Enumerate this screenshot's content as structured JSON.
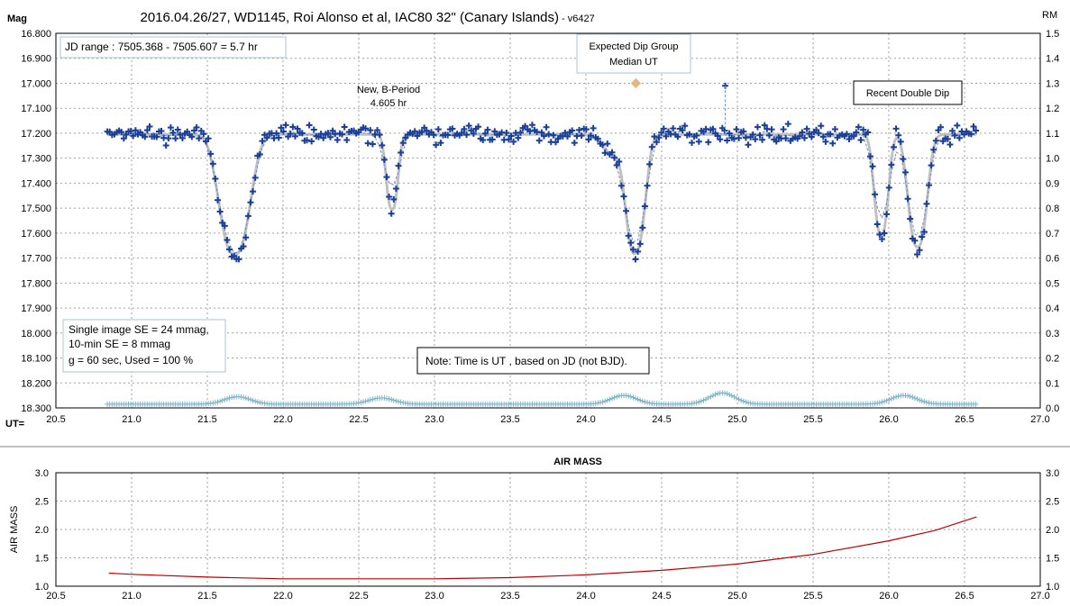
{
  "chart_data": [
    {
      "type": "scatter",
      "title": "2016.04.26/27,  WD1145, Roi Alonso  et al, IAC80 32\" (Canary Islands)",
      "title_suffix": " - v6427",
      "ylabel": "Mag",
      "y2label": "RM",
      "xlabel": "UT=",
      "xlim": [
        20.5,
        27.0
      ],
      "ylim": [
        16.8,
        18.3
      ],
      "y_inverted": true,
      "y2lim": [
        0.0,
        1.5
      ],
      "grid": true,
      "x_ticks": [
        "20.5",
        "21.0",
        "21.5",
        "22.0",
        "22.5",
        "23.0",
        "23.5",
        "24.0",
        "24.5",
        "25.0",
        "25.5",
        "26.0",
        "26.5",
        "27.0"
      ],
      "y_ticks": [
        "16.800",
        "16.900",
        "17.000",
        "17.100",
        "17.200",
        "17.300",
        "17.400",
        "17.500",
        "17.600",
        "17.700",
        "17.800",
        "17.900",
        "18.000",
        "18.100",
        "18.200",
        "18.300"
      ],
      "y2_ticks": [
        "1.5",
        "1.4",
        "1.3",
        "1.2",
        "1.1",
        "1.0",
        "0.9",
        "0.8",
        "0.7",
        "0.6",
        "0.5",
        "0.4",
        "0.3",
        "0.2",
        "0.1",
        "0.0"
      ],
      "dips": [
        {
          "center": 21.68,
          "depth": 0.48,
          "width": 0.13
        },
        {
          "center": 22.72,
          "depth": 0.3,
          "width": 0.05
        },
        {
          "center": 24.33,
          "depth": 0.45,
          "width": 0.08
        },
        {
          "center": 24.2,
          "depth": 0.08,
          "width": 0.12
        },
        {
          "center": 25.95,
          "depth": 0.4,
          "width": 0.06
        },
        {
          "center": 26.19,
          "depth": 0.45,
          "width": 0.08
        }
      ],
      "baseline_mag": 17.205,
      "data_range": [
        20.84,
        26.58
      ],
      "expected_dip": {
        "x": 24.33,
        "y": 17.0
      },
      "spike": {
        "x": 24.92,
        "y": 17.01
      },
      "residual_level": 18.285,
      "residual_bumps": [
        {
          "center": 21.7,
          "height": 0.03
        },
        {
          "center": 22.65,
          "height": 0.025
        },
        {
          "center": 24.25,
          "height": 0.035
        },
        {
          "center": 24.9,
          "height": 0.045
        },
        {
          "center": 26.1,
          "height": 0.035
        }
      ],
      "annotations": {
        "jd_range": "JD range  : 7505.368 - 7505.607  = 5.7 hr",
        "expected_dip_1": "Expected Dip Group",
        "expected_dip_2": "Median UT",
        "new_period_1": "New, B-Period",
        "new_period_2": "4.605 hr",
        "recent_double": "Recent Double Dip",
        "se_1": "Single image SE = 24 mmag,",
        "se_2": "10-min SE = 8 mmag",
        "se_3": "g = 60 sec, Used = 100 %",
        "note": "Note: Time is UT , based on JD (not BJD)."
      },
      "colors": {
        "points": "#1a3f96",
        "model": "#c0c0c0",
        "residuals": "#7fb4c9",
        "expected": "#e0b882",
        "spike": "#6a8fd0"
      }
    },
    {
      "type": "line",
      "title": "AIR MASS",
      "ylabel": "AIR MASS",
      "xlim": [
        20.5,
        27.0
      ],
      "ylim": [
        1.0,
        3.0
      ],
      "grid": true,
      "x_ticks": [
        "20.5",
        "21.0",
        "21.5",
        "22.0",
        "22.5",
        "23.0",
        "23.5",
        "24.0",
        "24.5",
        "25.0",
        "25.5",
        "26.0",
        "26.5",
        "27.0"
      ],
      "y_ticks": [
        "3.0",
        "2.5",
        "2.0",
        "1.5",
        "1.0"
      ],
      "x": [
        20.85,
        21.0,
        21.5,
        22.0,
        22.5,
        23.0,
        23.5,
        24.0,
        24.5,
        25.0,
        25.5,
        26.0,
        26.3,
        26.58
      ],
      "y": [
        1.23,
        1.21,
        1.16,
        1.13,
        1.13,
        1.13,
        1.15,
        1.2,
        1.28,
        1.39,
        1.56,
        1.8,
        1.98,
        2.22
      ],
      "colors": {
        "line": "#c00000"
      }
    }
  ]
}
